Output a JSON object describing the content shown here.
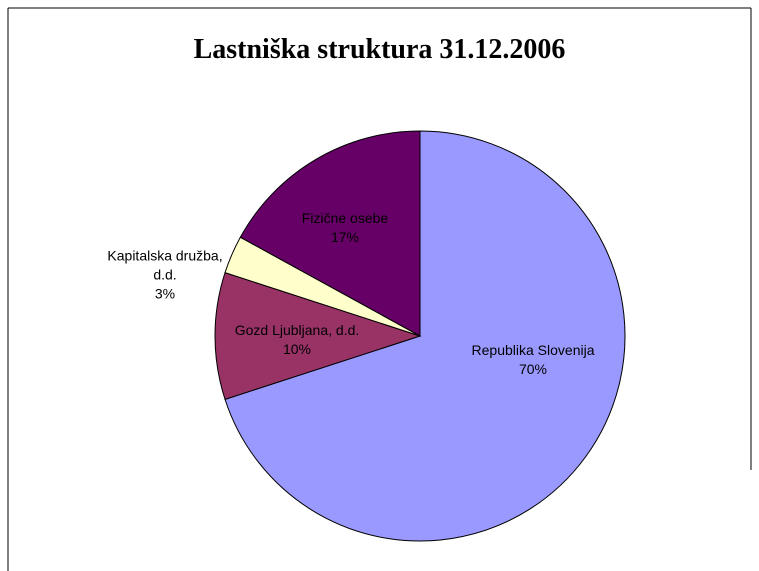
{
  "chart_data": {
    "type": "pie",
    "title": "Lastniška struktura 31.12.2006",
    "categories": [
      "Republika Slovenija",
      "Gozd Ljubljana, d.d.",
      "Kapitalska družba, d.d.",
      "Fizične osebe"
    ],
    "values": [
      70,
      10,
      3,
      17
    ],
    "value_labels": [
      "70%",
      "10%",
      "3%",
      "17%"
    ],
    "colors": [
      "#9999ff",
      "#993366",
      "#ffffcc",
      "#660066"
    ]
  }
}
